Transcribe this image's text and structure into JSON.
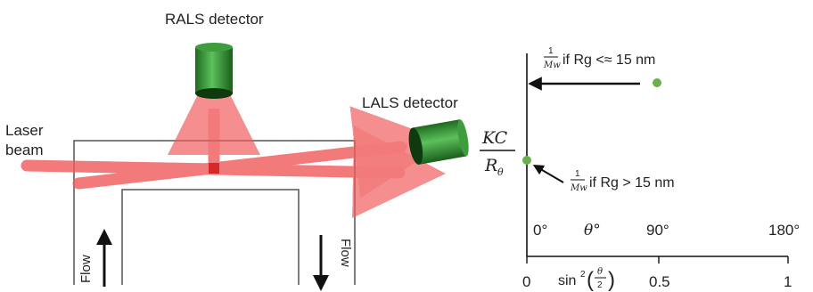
{
  "left": {
    "rals_label": "RALS detector",
    "lals_label": "LALS detector",
    "laser_line1": "Laser",
    "laser_line2": "beam",
    "flow_in": "Flow",
    "flow_out": "Flow",
    "colors": {
      "laser": "#f05a5a",
      "detector": "#2e8b2e",
      "frame": "#555555"
    }
  },
  "right": {
    "y_label_num": "KC",
    "y_label_den_main": "R",
    "y_label_den_sub": "θ",
    "annot_top_frac_num": "1",
    "annot_top_frac_den": "Mw",
    "annot_top_text": "if Rg <≈ 15 nm",
    "annot_bottom_frac_num": "1",
    "annot_bottom_frac_den": "Mw",
    "annot_bottom_text": "if Rg > 15 nm",
    "angle_ticks": [
      "0°",
      "θ°",
      "90°",
      "180°"
    ],
    "x_axis_label": "sin",
    "x_axis_exp": "2",
    "x_axis_frac_num": "θ",
    "x_axis_frac_den": "2",
    "x_ticks": [
      "0",
      "0.5",
      "1"
    ],
    "colors": {
      "point": "#6ab04c",
      "axis": "#111111"
    }
  }
}
